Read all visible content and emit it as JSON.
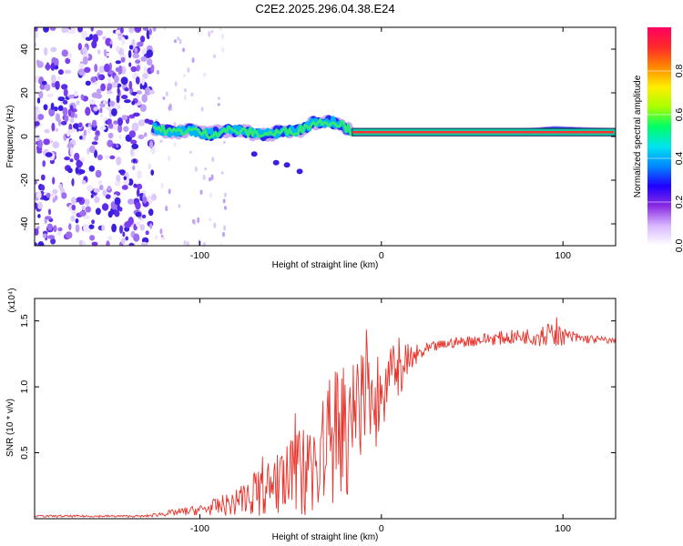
{
  "page": {
    "title": "C2E2.2025.296.04.38.E24"
  },
  "chart_data": [
    {
      "type": "heatmap",
      "name": "spectrogram",
      "title": "C2E2.2025.296.04.38.E24",
      "xlabel": "Height of straight line (km)",
      "ylabel": "Frequency (Hz)",
      "xlim": [
        -191,
        129
      ],
      "ylim": [
        -50,
        50
      ],
      "xticks": [
        -100,
        0,
        100
      ],
      "yticks": [
        -40,
        -20,
        0,
        20,
        40
      ],
      "colorbar": {
        "label": "Normalized spectral amplitude",
        "range": [
          0,
          1
        ],
        "ticks": [
          0.0,
          0.2,
          0.4,
          0.6,
          0.8
        ],
        "stops": [
          "#ffffff",
          "#d9b8ff",
          "#8a2be2",
          "#2000ff",
          "#0088ff",
          "#00e5ee",
          "#00ff66",
          "#aaff00",
          "#ffee00",
          "#ff8800",
          "#ff2a2a",
          "#ff0060"
        ]
      },
      "noise_region_x": [
        -191,
        -125
      ],
      "signal_track": [
        {
          "x": -125,
          "f": 4
        },
        {
          "x": -115,
          "f": 2
        },
        {
          "x": -105,
          "f": 3
        },
        {
          "x": -95,
          "f": 1
        },
        {
          "x": -85,
          "f": 3
        },
        {
          "x": -75,
          "f": 2
        },
        {
          "x": -65,
          "f": 1
        },
        {
          "x": -55,
          "f": 2
        },
        {
          "x": -45,
          "f": 3
        },
        {
          "x": -38,
          "f": 6
        },
        {
          "x": -30,
          "f": 7
        },
        {
          "x": -22,
          "f": 6
        },
        {
          "x": -16,
          "f": 2
        },
        {
          "x": 0,
          "f": 2
        },
        {
          "x": 20,
          "f": 2
        },
        {
          "x": 40,
          "f": 2
        },
        {
          "x": 60,
          "f": 2
        },
        {
          "x": 80,
          "f": 2
        },
        {
          "x": 95,
          "f": 3
        },
        {
          "x": 129,
          "f": 2
        }
      ]
    },
    {
      "type": "line",
      "name": "snr",
      "xlabel": "Height of straight line (km)",
      "ylabel": "SNR (10 * v/v)",
      "y_multiplier": "(x10⁴)",
      "color": "#e8322a",
      "xlim": [
        -191,
        129
      ],
      "ylim": [
        0,
        1.67
      ],
      "xticks": [
        -100,
        0,
        100
      ],
      "yticks": [
        0.5,
        1.0,
        1.5
      ],
      "ytick_labels": [
        "0.5",
        "1.0",
        "1.5"
      ],
      "envelope": {
        "x": [
          -191,
          -130,
          -120,
          -100,
          -80,
          -70,
          -60,
          -50,
          -40,
          -30,
          -20,
          -10,
          0,
          10,
          20,
          30,
          40,
          60,
          80,
          90,
          100,
          110,
          120,
          129
        ],
        "y": [
          0.02,
          0.02,
          0.04,
          0.07,
          0.13,
          0.2,
          0.26,
          0.34,
          0.42,
          0.55,
          0.7,
          0.85,
          1.0,
          1.15,
          1.25,
          1.31,
          1.34,
          1.37,
          1.39,
          1.4,
          1.39,
          1.37,
          1.36,
          1.35
        ]
      },
      "spread": {
        "x": [
          -191,
          -130,
          -120,
          -100,
          -80,
          -70,
          -60,
          -50,
          -40,
          -30,
          -20,
          -10,
          0,
          10,
          20,
          30,
          40,
          60,
          80,
          90,
          100,
          110,
          120,
          129
        ],
        "y": [
          0.008,
          0.008,
          0.02,
          0.04,
          0.1,
          0.17,
          0.22,
          0.3,
          0.38,
          0.5,
          0.55,
          0.45,
          0.35,
          0.2,
          0.08,
          0.04,
          0.04,
          0.05,
          0.06,
          0.1,
          0.07,
          0.04,
          0.03,
          0.02
        ]
      }
    }
  ]
}
